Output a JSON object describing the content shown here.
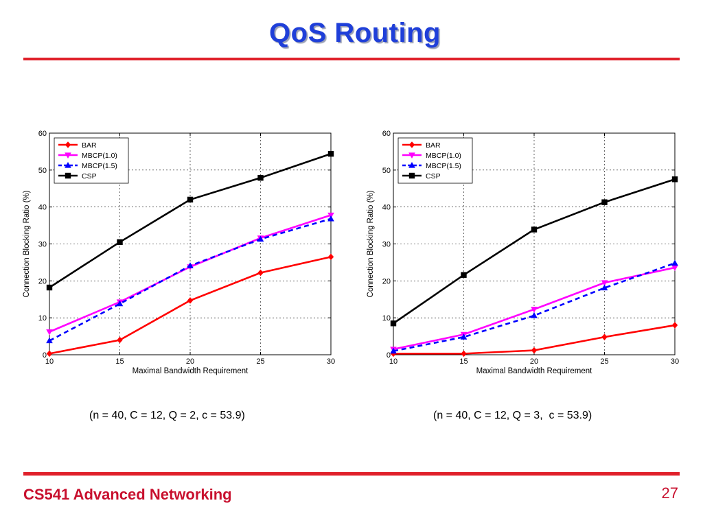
{
  "slide": {
    "title": "QoS Routing",
    "footer_course": "CS541 Advanced Networking",
    "footer_page": "27"
  },
  "captions": [
    "(n = 40, C = 12, Q = 2, c = 53.9)",
    "(n = 40, C = 12, Q = 3,  c = 53.9)"
  ],
  "colors": {
    "title": "#1f3fd9",
    "rule": "#e0202a",
    "footer": "#c8102e"
  },
  "chart_data": [
    {
      "type": "line",
      "xlabel": "Maximal Bandwidth Requirement",
      "ylabel": "Connection Blocking Ratio (%)",
      "x": [
        10,
        15,
        20,
        25,
        30
      ],
      "xlim": [
        10,
        30
      ],
      "ylim": [
        0,
        60
      ],
      "xticks": [
        10,
        15,
        20,
        25,
        30
      ],
      "yticks": [
        0,
        10,
        20,
        30,
        40,
        50,
        60
      ],
      "grid": true,
      "legend_position": "top-left",
      "series": [
        {
          "name": "BAR",
          "values": [
            0.3,
            4,
            14.7,
            22.2,
            26.5
          ],
          "color": "#ff0000",
          "marker": "diamond",
          "dash": "solid"
        },
        {
          "name": "MBCP(1.0)",
          "values": [
            6.2,
            14.3,
            23.8,
            31.6,
            37.8
          ],
          "color": "#ff00ff",
          "marker": "triangle-down",
          "dash": "solid"
        },
        {
          "name": "MBCP(1.5)",
          "values": [
            3.8,
            13.8,
            24.1,
            31.3,
            36.8
          ],
          "color": "#0000ff",
          "marker": "triangle-up",
          "dash": "dashed"
        },
        {
          "name": "CSP",
          "values": [
            18.2,
            30.5,
            42,
            47.9,
            54.4
          ],
          "color": "#000000",
          "marker": "square",
          "dash": "solid"
        }
      ]
    },
    {
      "type": "line",
      "xlabel": "Maximal Bandwidth Requirement",
      "ylabel": "Connection Blocking Ratio (%)",
      "x": [
        10,
        15,
        20,
        25,
        30
      ],
      "xlim": [
        10,
        30
      ],
      "ylim": [
        0,
        60
      ],
      "xticks": [
        10,
        15,
        20,
        25,
        30
      ],
      "yticks": [
        0,
        10,
        20,
        30,
        40,
        50,
        60
      ],
      "grid": true,
      "legend_position": "top-left",
      "series": [
        {
          "name": "BAR",
          "values": [
            0.3,
            0.3,
            1.2,
            4.8,
            8
          ],
          "color": "#ff0000",
          "marker": "diamond",
          "dash": "solid"
        },
        {
          "name": "MBCP(1.0)",
          "values": [
            1.5,
            5.5,
            12.3,
            19.5,
            23.6
          ],
          "color": "#ff00ff",
          "marker": "triangle-down",
          "dash": "solid"
        },
        {
          "name": "MBCP(1.5)",
          "values": [
            1,
            4.8,
            10.6,
            18.1,
            24.8
          ],
          "color": "#0000ff",
          "marker": "triangle-up",
          "dash": "dashed"
        },
        {
          "name": "CSP",
          "values": [
            8.5,
            21.6,
            33.9,
            41.3,
            47.5
          ],
          "color": "#000000",
          "marker": "square",
          "dash": "solid"
        }
      ]
    }
  ]
}
